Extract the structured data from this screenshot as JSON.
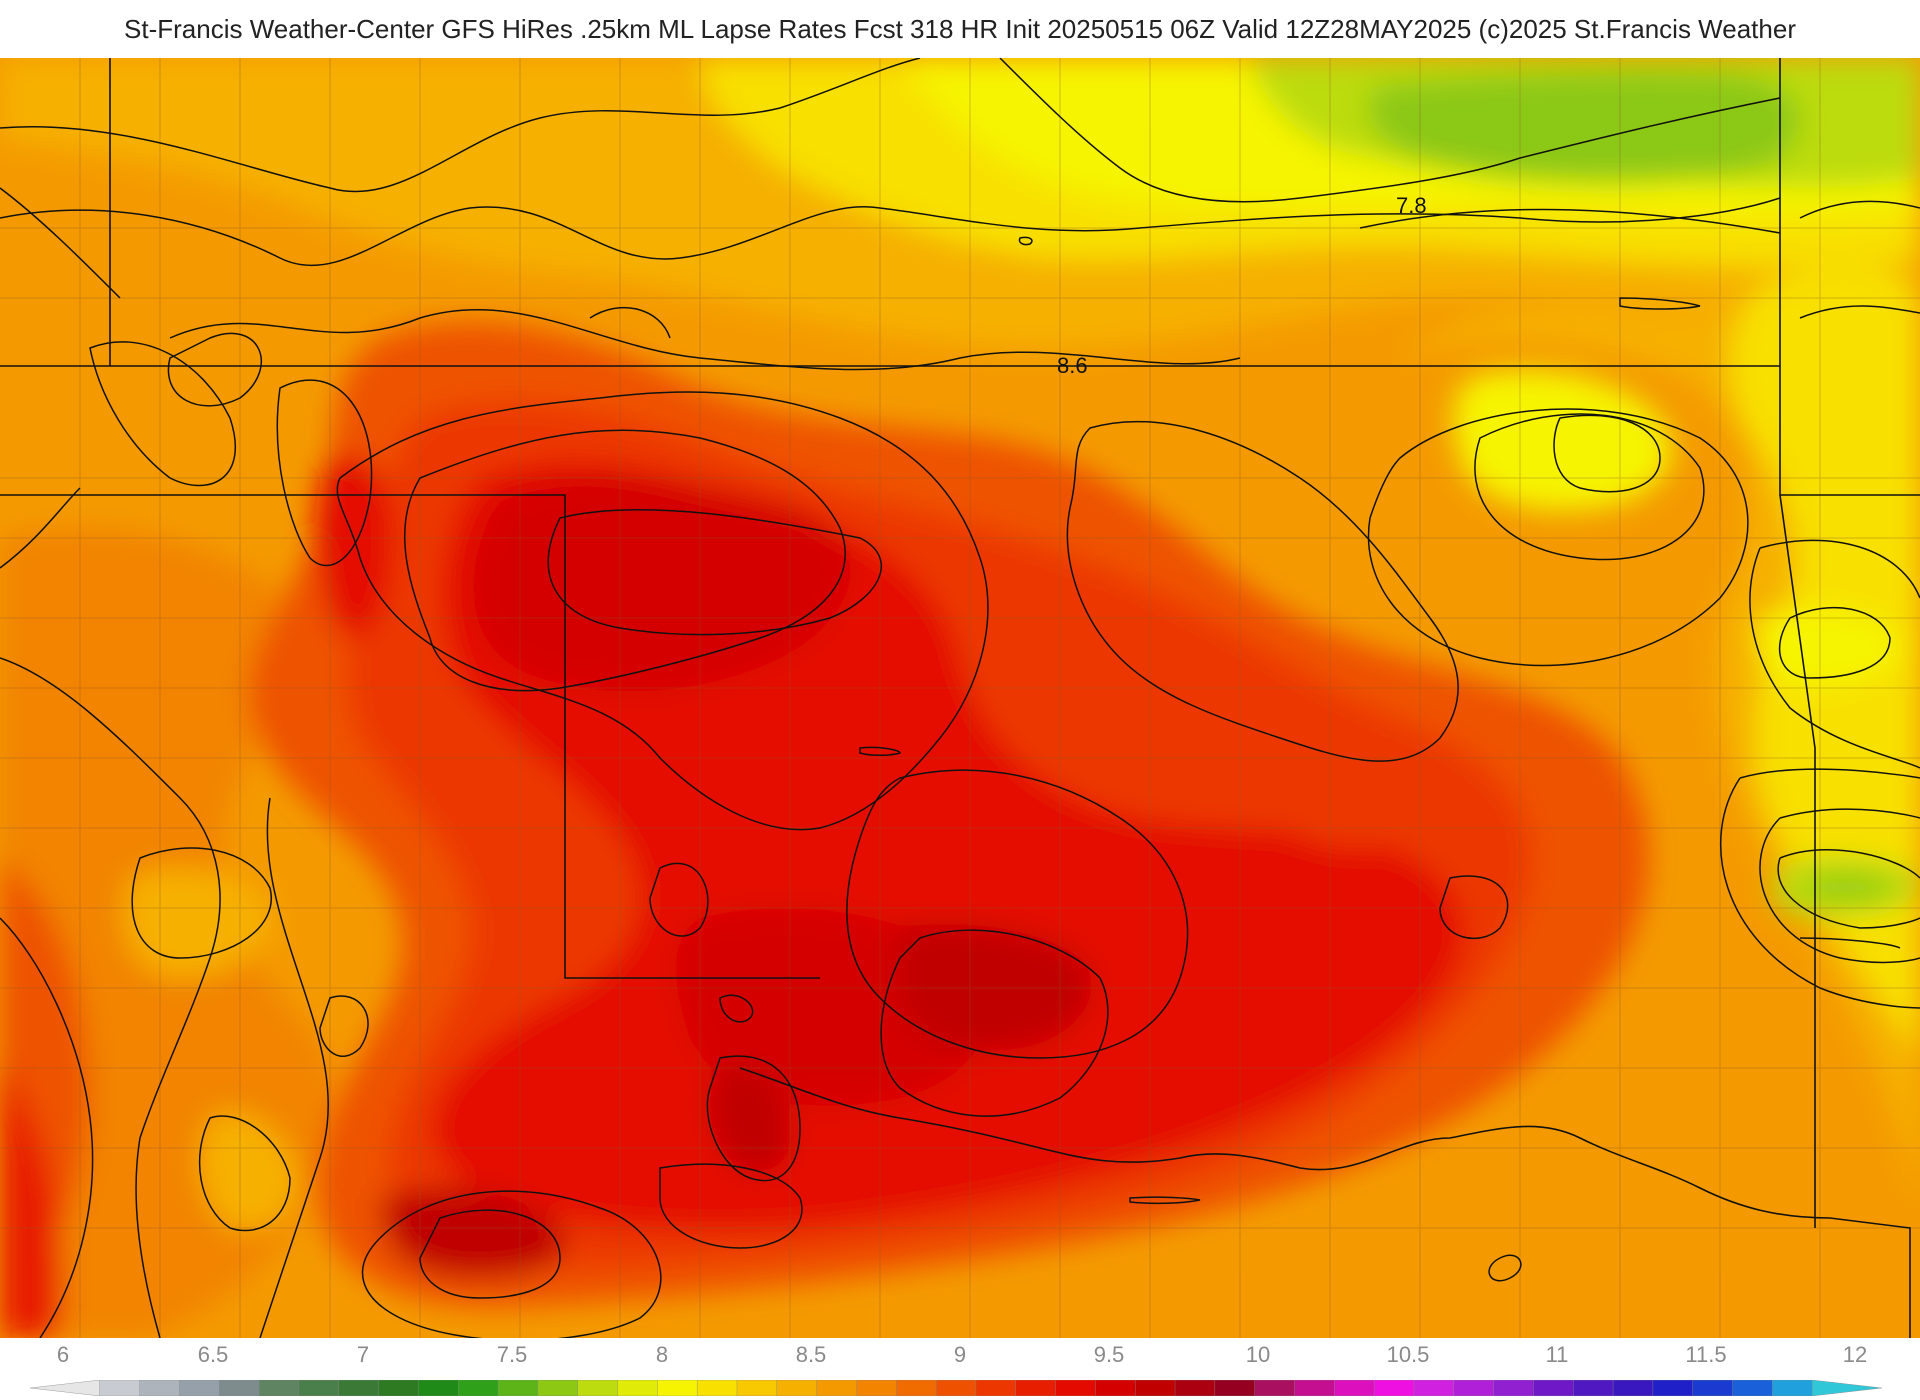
{
  "header": {
    "title": "St-Francis Weather-Center GFS HiRes .25km ML Lapse Rates  Fcst 318 HR Init 20250515 06Z  Valid 12Z28MAY2025    (c)2025 St.Francis Weather"
  },
  "map": {
    "contour_labels": [
      "7.8",
      "8.6"
    ]
  },
  "legend": {
    "ticks": [
      "6",
      "6.5",
      "7",
      "7.5",
      "8",
      "8.5",
      "9",
      "9.5",
      "10",
      "10.5",
      "11",
      "11.5",
      "12"
    ],
    "colors": [
      "#e6e6e6",
      "#c8ccd2",
      "#aeb4bc",
      "#96a0aa",
      "#7e8c8e",
      "#5f8462",
      "#4a7e4a",
      "#3a7a36",
      "#2e7a22",
      "#208a18",
      "#2ea01a",
      "#5cb418",
      "#8cc814",
      "#bcdc10",
      "#e0ec08",
      "#f6f400",
      "#f8e000",
      "#f8c800",
      "#f6b000",
      "#f49a00",
      "#f28400",
      "#f06c00",
      "#ee5200",
      "#ec3800",
      "#e81e00",
      "#e40a00",
      "#d40000",
      "#c00000",
      "#aa0010",
      "#960020",
      "#aa1060",
      "#c41090",
      "#dc10bc",
      "#ee10e0",
      "#d020e0",
      "#b020d8",
      "#9020d0",
      "#6e18c8",
      "#5018c0",
      "#3a18c0",
      "#2020c8",
      "#1a3ad0",
      "#1a60d8",
      "#20a0dc",
      "#30c8d8"
    ]
  }
}
